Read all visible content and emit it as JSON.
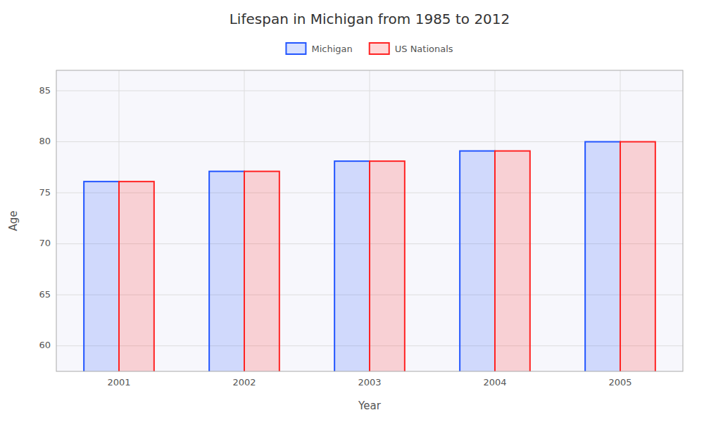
{
  "chart_data": {
    "type": "bar",
    "title": "Lifespan in Michigan from 1985 to 2012",
    "xlabel": "Year",
    "ylabel": "Age",
    "categories": [
      "2001",
      "2002",
      "2003",
      "2004",
      "2005"
    ],
    "series": [
      {
        "name": "Michigan",
        "color": "#2255ff",
        "values": [
          76.1,
          77.1,
          78.1,
          79.1,
          80.0
        ]
      },
      {
        "name": "US Nationals",
        "color": "#ff2222",
        "values": [
          76.1,
          77.1,
          78.1,
          79.1,
          80.0
        ]
      }
    ],
    "ylim": [
      57.5,
      87
    ],
    "yticks": [
      60,
      65,
      70,
      75,
      80,
      85
    ],
    "grid": true,
    "legend": "top"
  }
}
